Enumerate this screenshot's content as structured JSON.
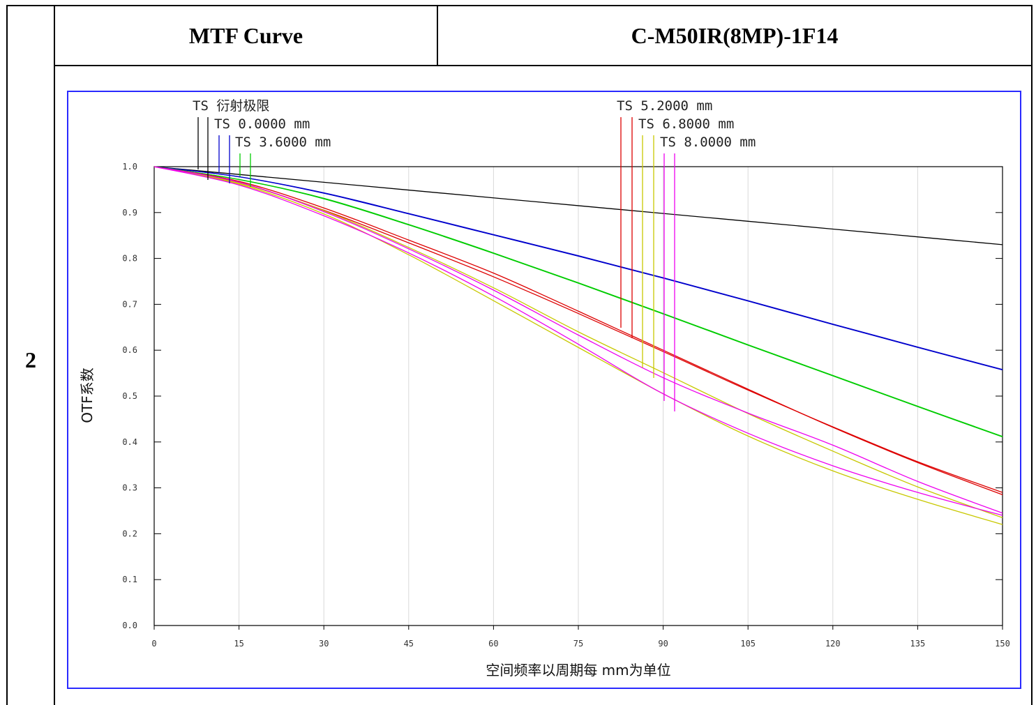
{
  "table": {
    "row_number": "2",
    "header_left": "MTF Curve",
    "header_right": "C-M50IR(8MP)-1F14"
  },
  "chart_data": {
    "type": "line",
    "xlabel": "空间频率以周期每 mm为单位",
    "ylabel": "OTF系数",
    "xlim": [
      0,
      150
    ],
    "ylim": [
      0,
      1.0
    ],
    "xticks": [
      0,
      15,
      30,
      45,
      60,
      75,
      90,
      105,
      120,
      135,
      150
    ],
    "yticks": [
      "0.0",
      "0.1",
      "0.2",
      "0.3",
      "0.4",
      "0.5",
      "0.6",
      "0.7",
      "0.8",
      "0.9",
      "1.0"
    ],
    "grid": true,
    "legend": [
      {
        "label": "TS 衍射极限",
        "color": "#000000"
      },
      {
        "label": "TS 0.0000 mm",
        "color": "#0000cc"
      },
      {
        "label": "TS 3.6000 mm",
        "color": "#00cc00"
      },
      {
        "label": "TS 5.2000 mm",
        "color": "#dd0000"
      },
      {
        "label": "TS 6.8000 mm",
        "color": "#c8c800"
      },
      {
        "label": "TS 8.0000 mm",
        "color": "#ee00ee"
      }
    ],
    "x": [
      0,
      15,
      30,
      45,
      60,
      75,
      90,
      105,
      120,
      135,
      150
    ],
    "series": [
      {
        "name": "TS 衍射极限",
        "color": "#000000",
        "values": [
          1.0,
          0.983,
          0.966,
          0.949,
          0.932,
          0.915,
          0.898,
          0.881,
          0.864,
          0.847,
          0.83
        ]
      },
      {
        "name": "TS 0.0000 mm",
        "color": "#0000cc",
        "values": [
          1.0,
          0.978,
          0.942,
          0.897,
          0.851,
          0.805,
          0.757,
          0.707,
          0.656,
          0.606,
          0.557
        ]
      },
      {
        "name": "TS 0.0000 mm",
        "color": "#0000cc",
        "values": [
          1.0,
          0.978,
          0.943,
          0.898,
          0.852,
          0.806,
          0.758,
          0.708,
          0.657,
          0.607,
          0.558
        ]
      },
      {
        "name": "TS 3.6000 mm",
        "color": "#00cc00",
        "values": [
          1.0,
          0.972,
          0.931,
          0.874,
          0.812,
          0.747,
          0.68,
          0.612,
          0.545,
          0.478,
          0.412
        ]
      },
      {
        "name": "TS 3.6000 mm",
        "color": "#00cc00",
        "values": [
          1.0,
          0.972,
          0.93,
          0.873,
          0.811,
          0.746,
          0.679,
          0.611,
          0.544,
          0.477,
          0.411
        ]
      },
      {
        "name": "TS 5.2000 mm",
        "color": "#dd0000",
        "values": [
          1.0,
          0.968,
          0.91,
          0.84,
          0.768,
          0.685,
          0.6,
          0.515,
          0.432,
          0.355,
          0.285
        ]
      },
      {
        "name": "TS 5.2000 mm",
        "color": "#dd0000",
        "values": [
          1.0,
          0.965,
          0.905,
          0.834,
          0.76,
          0.68,
          0.597,
          0.513,
          0.433,
          0.357,
          0.29
        ]
      },
      {
        "name": "TS 6.8000 mm",
        "color": "#c8c800",
        "values": [
          1.0,
          0.962,
          0.897,
          0.808,
          0.708,
          0.606,
          0.505,
          0.413,
          0.337,
          0.275,
          0.22
        ]
      },
      {
        "name": "TS 6.8000 mm",
        "color": "#c8c800",
        "values": [
          1.0,
          0.964,
          0.904,
          0.824,
          0.736,
          0.64,
          0.551,
          0.462,
          0.38,
          0.302,
          0.235
        ]
      },
      {
        "name": "TS 8.0000 mm",
        "color": "#ee00ee",
        "values": [
          1.0,
          0.96,
          0.893,
          0.812,
          0.718,
          0.613,
          0.505,
          0.419,
          0.348,
          0.29,
          0.24
        ]
      },
      {
        "name": "TS 8.0000 mm",
        "color": "#ee00ee",
        "values": [
          1.0,
          0.966,
          0.902,
          0.821,
          0.731,
          0.633,
          0.54,
          0.463,
          0.393,
          0.314,
          0.245
        ]
      }
    ]
  }
}
